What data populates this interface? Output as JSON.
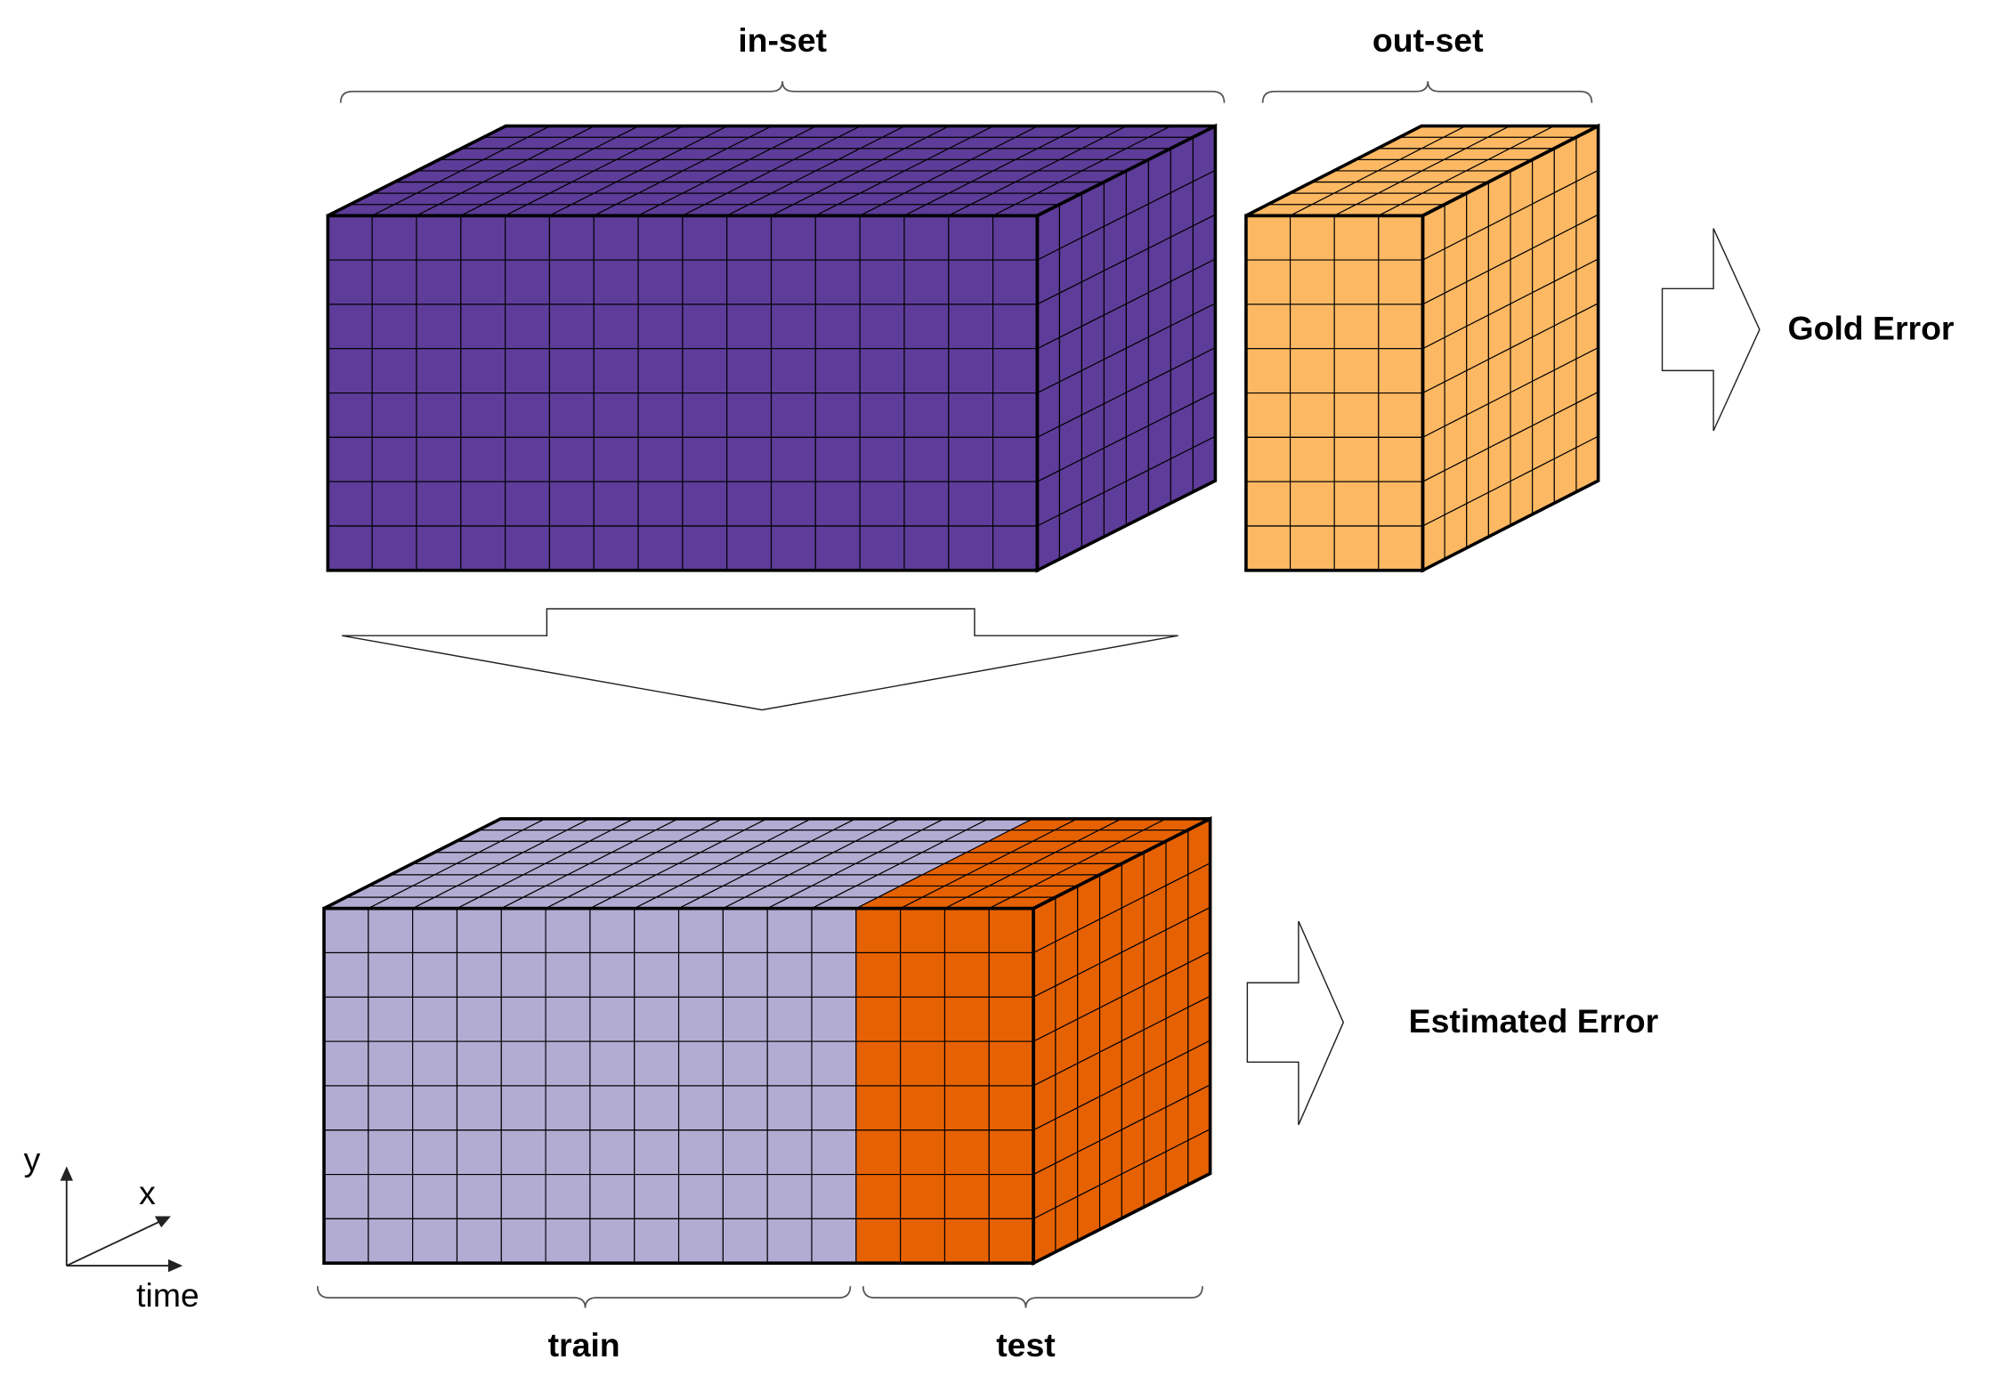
{
  "labels": {
    "in_set": "in-set",
    "out_set": "out-set",
    "gold_error": "Gold Error",
    "estimated_error": "Estimated Error",
    "train": "train",
    "test": "test"
  },
  "axes": {
    "y": "y",
    "x": "x",
    "time": "time"
  }
}
